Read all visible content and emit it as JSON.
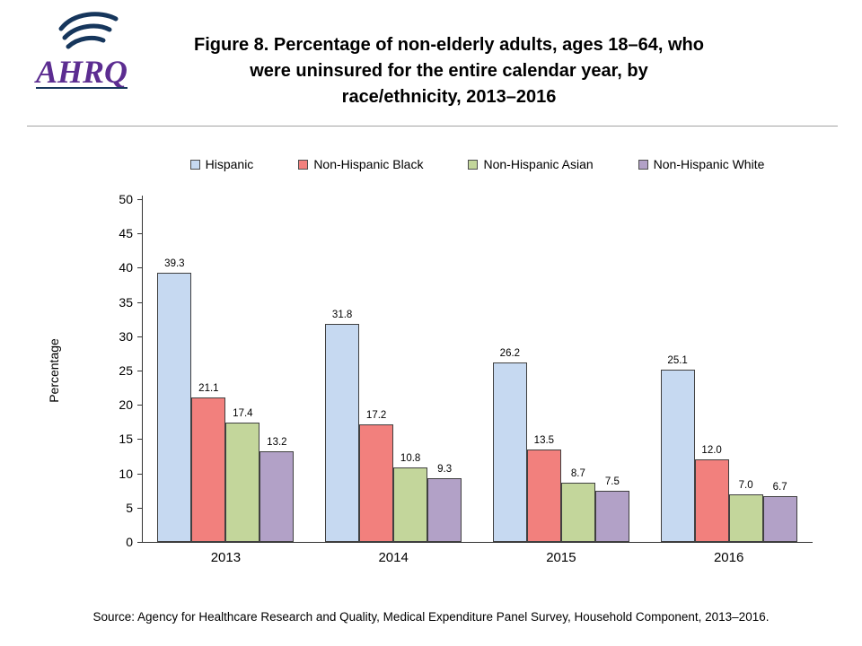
{
  "header": {
    "logo_text": "AHRQ",
    "title_lines": [
      "Figure 8. Percentage of non-elderly adults, ages 18–64, who",
      "were uninsured for the entire calendar year, by",
      "race/ethnicity, 2013–2016"
    ]
  },
  "chart_data": {
    "type": "bar",
    "title": "Figure 8. Percentage of non-elderly adults, ages 18–64, who were uninsured for the entire calendar year, by race/ethnicity, 2013–2016",
    "categories": [
      "2013",
      "2014",
      "2015",
      "2016"
    ],
    "series": [
      {
        "name": "Hispanic",
        "color": "#C6D9F1",
        "values": [
          39.3,
          31.8,
          26.2,
          25.1
        ]
      },
      {
        "name": "Non-Hispanic Black",
        "color": "#F2807D",
        "values": [
          21.1,
          17.2,
          13.5,
          12.0
        ]
      },
      {
        "name": "Non-Hispanic Asian",
        "color": "#C3D69B",
        "values": [
          17.4,
          10.8,
          8.7,
          7.0
        ]
      },
      {
        "name": "Non-Hispanic White",
        "color": "#B2A1C7",
        "values": [
          13.2,
          9.3,
          7.5,
          6.7
        ]
      }
    ],
    "ylabel": "Percentage",
    "ylim": [
      0,
      50
    ],
    "ytick_step": 5,
    "grid": false,
    "legend_position": "top",
    "value_labels_decimals": 1
  },
  "footer": {
    "source": "Source: Agency for Healthcare Research and Quality, Medical Expenditure Panel Survey, Household Component, 2013–2016."
  }
}
